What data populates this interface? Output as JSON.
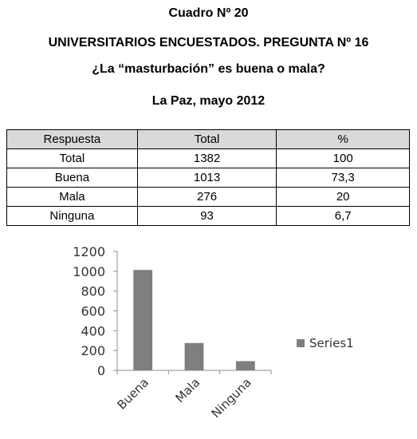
{
  "header": {
    "line1": "Cuadro Nº 20",
    "line2": "UNIVERSITARIOS ENCUESTADOS. PREGUNTA Nº 16",
    "line3": "¿La “masturbación” es buena o mala?",
    "line4": "La Paz, mayo 2012"
  },
  "table": {
    "columns": [
      "Respuesta",
      "Total",
      "%"
    ],
    "rows": [
      [
        "Total",
        "1382",
        "100"
      ],
      [
        "Buena",
        "1013",
        "73,3"
      ],
      [
        "Mala",
        "276",
        "20"
      ],
      [
        "Ninguna",
        "93",
        "6,7"
      ]
    ]
  },
  "chart_data": {
    "type": "bar",
    "categories": [
      "Buena",
      "Mala",
      "Ninguna"
    ],
    "series": [
      {
        "name": "Series1",
        "values": [
          1013,
          276,
          93
        ]
      }
    ],
    "ylim": [
      0,
      1200
    ],
    "yticks": [
      "0",
      "200",
      "400",
      "600",
      "800",
      "1000",
      "1200"
    ],
    "grid": false,
    "legend_position": "right",
    "bar_color": "#7f7f7f"
  }
}
